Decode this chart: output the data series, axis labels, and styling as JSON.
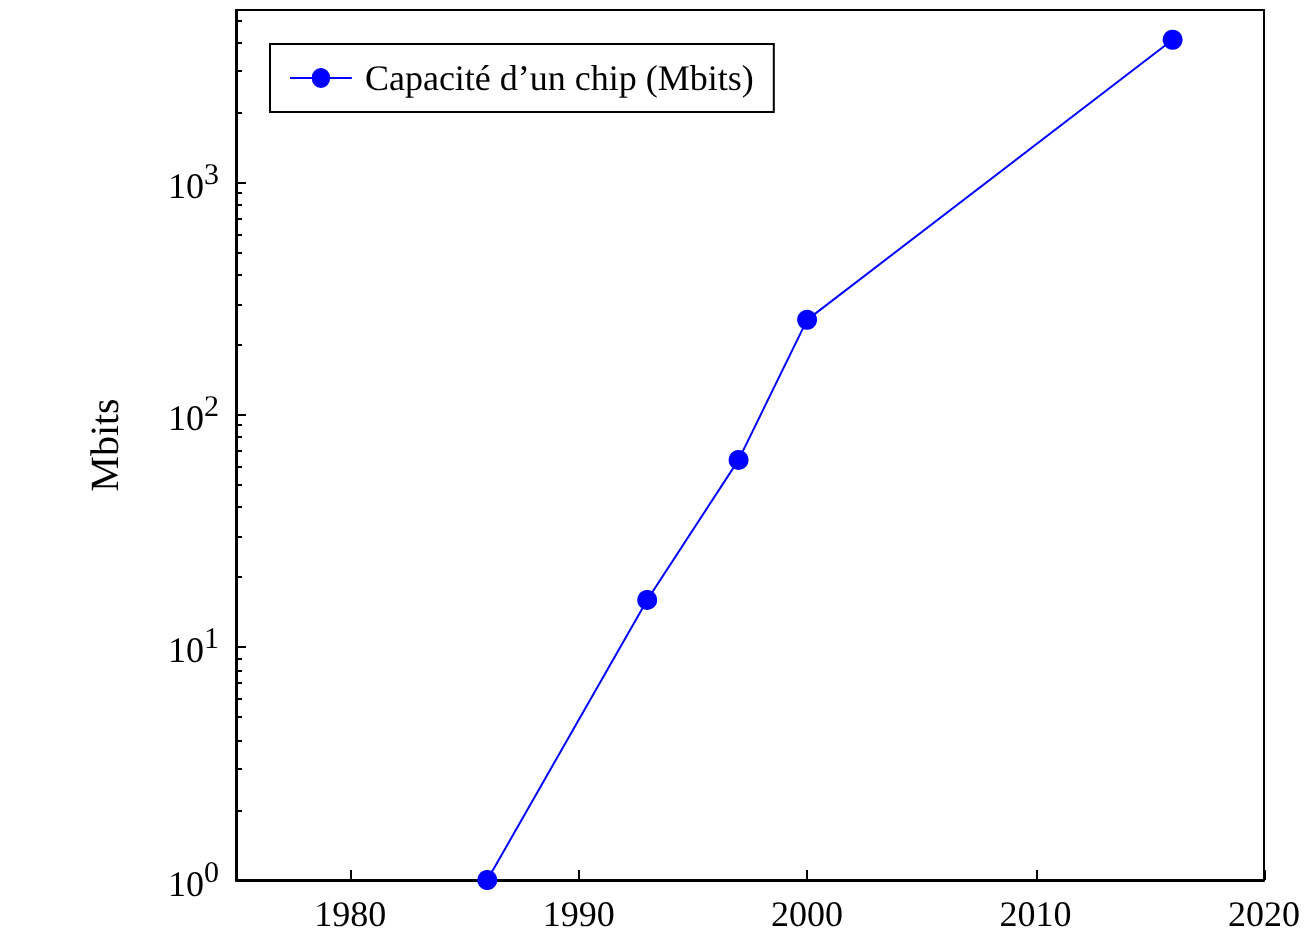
{
  "chart_data": {
    "type": "line",
    "ylabel": "Mbits",
    "x": [
      1986,
      1993,
      1997,
      2000,
      2016
    ],
    "series": [
      {
        "name": "Capacité d’un chip (Mbits)",
        "color": "#0000ff",
        "values": [
          1,
          16,
          64,
          256,
          4096
        ]
      }
    ],
    "xlim": [
      1975,
      2020
    ],
    "xticks": [
      1980,
      1990,
      2000,
      2010,
      2020
    ],
    "ylim": [
      1,
      5500
    ],
    "yticks": [
      {
        "value": 1,
        "label": "10$^{0}$"
      },
      {
        "value": 10,
        "label": "10$^{1}$"
      },
      {
        "value": 100,
        "label": "10$^{2}$"
      },
      {
        "value": 1000,
        "label": "10$^{3}$"
      }
    ],
    "log": true,
    "grid": false,
    "legend": "top left",
    "marker": "circle",
    "line_style": "solid"
  }
}
